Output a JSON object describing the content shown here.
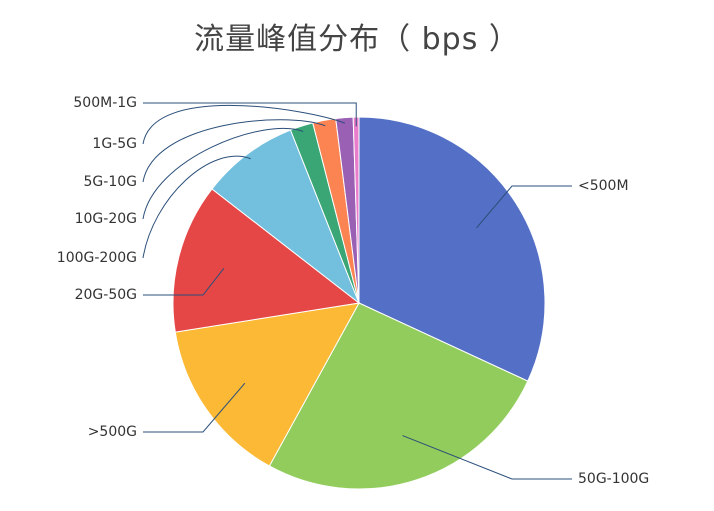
{
  "chart_data": {
    "type": "pie",
    "title": "流量峰值分布（ bps ）",
    "slices": [
      {
        "label": "<500M",
        "value": 31.9,
        "color": "#5470c6"
      },
      {
        "label": "50G-100G",
        "value": 26.1,
        "color": "#91cc5c"
      },
      {
        "label": ">500G",
        "value": 14.5,
        "color": "#fbb935"
      },
      {
        "label": "20G-50G",
        "value": 13.0,
        "color": "#e54646"
      },
      {
        "label": "100G-200G",
        "value": 8.5,
        "color": "#73bfde"
      },
      {
        "label": "10G-20G",
        "value": 2.0,
        "color": "#3aa675"
      },
      {
        "label": "5G-10G",
        "value": 2.0,
        "color": "#fc8452"
      },
      {
        "label": "1G-5G",
        "value": 1.5,
        "color": "#9a60b4"
      },
      {
        "label": "500M-1G",
        "value": 0.5,
        "color": "#ea7ccc"
      }
    ]
  }
}
